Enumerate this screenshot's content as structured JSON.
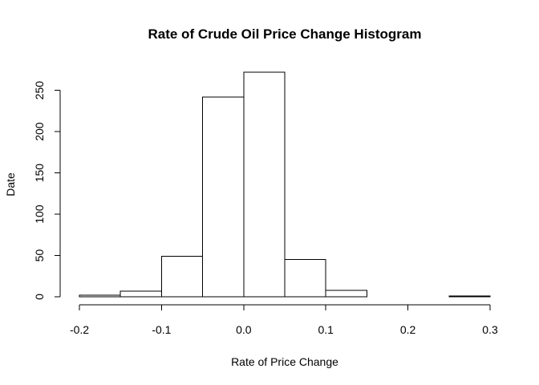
{
  "chart_data": {
    "type": "bar",
    "title": "Rate of Crude Oil Price Change Histogram",
    "xlabel": "Rate of Price Change",
    "ylabel": "Date",
    "xlim": [
      -0.2,
      0.3
    ],
    "ylim": [
      0,
      272
    ],
    "x_ticks": [
      "-0.2",
      "-0.1",
      "0.0",
      "0.1",
      "0.2",
      "0.3"
    ],
    "y_ticks": [
      "0",
      "50",
      "100",
      "150",
      "200",
      "250"
    ],
    "bins": [
      {
        "from": -0.2,
        "to": -0.15,
        "value": 2
      },
      {
        "from": -0.15,
        "to": -0.1,
        "value": 7
      },
      {
        "from": -0.1,
        "to": -0.05,
        "value": 49
      },
      {
        "from": -0.05,
        "to": 0.0,
        "value": 242
      },
      {
        "from": 0.0,
        "to": 0.05,
        "value": 272
      },
      {
        "from": 0.05,
        "to": 0.1,
        "value": 45
      },
      {
        "from": 0.1,
        "to": 0.15,
        "value": 8
      },
      {
        "from": 0.15,
        "to": 0.2,
        "value": 0
      },
      {
        "from": 0.2,
        "to": 0.25,
        "value": 0
      },
      {
        "from": 0.25,
        "to": 0.3,
        "value": 1
      }
    ],
    "grid": false,
    "bar_fill": "#ffffff",
    "bar_stroke": "#000000"
  }
}
